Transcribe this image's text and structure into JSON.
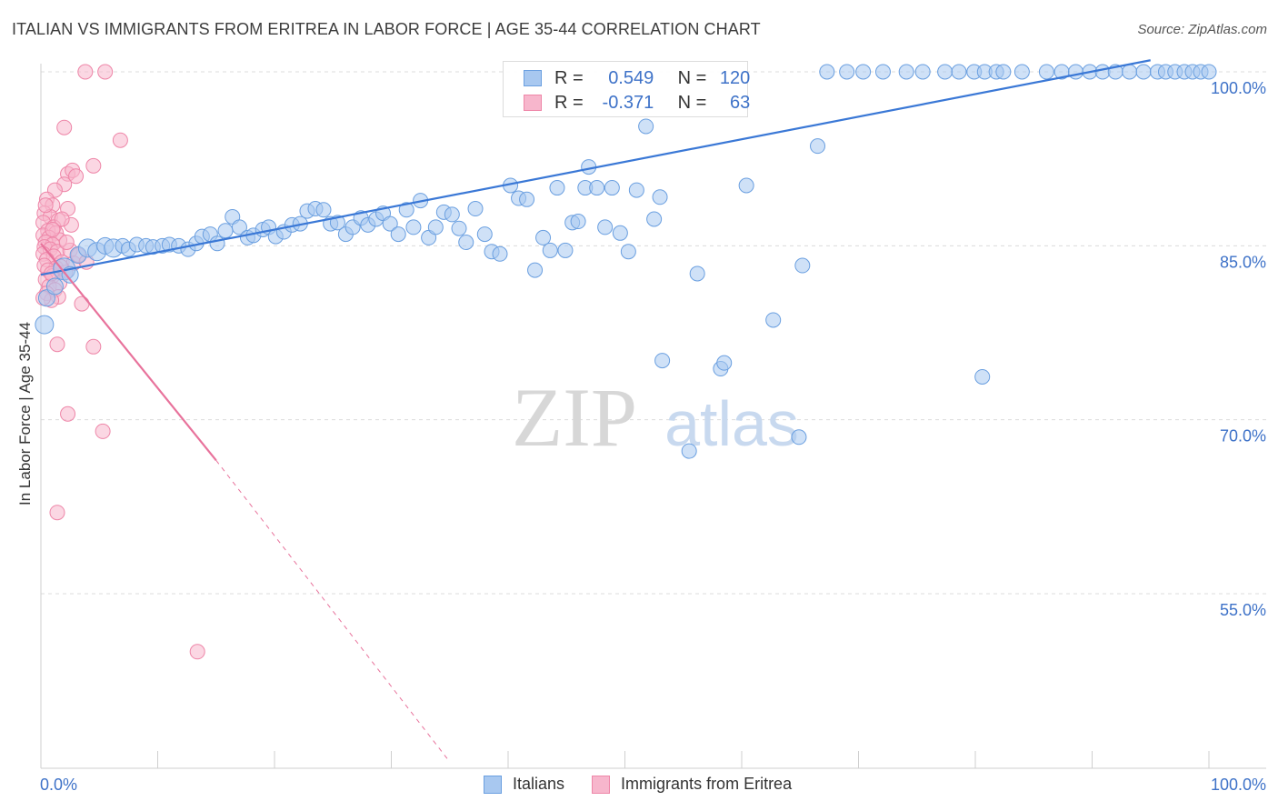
{
  "title": "ITALIAN VS IMMIGRANTS FROM ERITREA IN LABOR FORCE | AGE 35-44 CORRELATION CHART",
  "source": "Source: ZipAtlas.com",
  "watermark": {
    "zip": "ZIP",
    "atlas": "atlas"
  },
  "legend": {
    "italians": {
      "r_label": "R =",
      "r_value": "0.549",
      "n_label": "N =",
      "n_value": "120"
    },
    "eritrea": {
      "r_label": "R =",
      "r_value": "-0.371",
      "n_label": "N =",
      "n_value": "63"
    }
  },
  "bottom_legend": {
    "italians": "Italians",
    "eritrea": "Immigrants from Eritrea"
  },
  "colors": {
    "blue_fill": "#a8c8f0",
    "blue_stroke": "#6a9fe0",
    "blue_line": "#3a78d6",
    "pink_fill": "#f7b6cc",
    "pink_stroke": "#ee86a8",
    "pink_line": "#e8739c",
    "grid": "#dcdcdc",
    "tick_text": "#3e72c8"
  },
  "chart_data": {
    "type": "scatter",
    "title": "ITALIAN VS IMMIGRANTS FROM ERITREA IN LABOR FORCE | AGE 35-44 CORRELATION CHART",
    "xlabel": "",
    "ylabel": "In Labor Force | Age 35-44",
    "xlim": [
      0,
      100
    ],
    "ylim": [
      40,
      102
    ],
    "x_tick_labels": [
      "0.0%",
      "100.0%"
    ],
    "y_ticks": [
      55,
      70,
      85,
      100
    ],
    "y_tick_labels": [
      "55.0%",
      "70.0%",
      "85.0%",
      "100.0%"
    ],
    "series": [
      {
        "name": "Italians",
        "trend": {
          "x0": 0,
          "y0": 82.5,
          "x1": 95,
          "y1": 101,
          "style": "solid"
        },
        "points": [
          [
            0.5,
            80.5,
            9
          ],
          [
            0.3,
            78.2,
            10
          ],
          [
            1.2,
            81.5,
            9
          ],
          [
            2.0,
            83.0,
            12
          ],
          [
            2.5,
            82.5,
            9
          ],
          [
            3.2,
            84.2,
            9
          ],
          [
            4.0,
            84.8,
            10
          ],
          [
            4.8,
            84.5,
            10
          ],
          [
            5.5,
            85.0,
            9
          ],
          [
            6.2,
            84.8,
            10
          ],
          [
            7.0,
            85.0,
            8
          ],
          [
            7.5,
            84.7,
            8
          ],
          [
            8.2,
            85.1,
            8
          ],
          [
            9.0,
            85.0,
            8
          ],
          [
            9.6,
            84.9,
            8
          ],
          [
            10.4,
            85.0,
            8
          ],
          [
            11.0,
            85.1,
            8
          ],
          [
            11.8,
            85.0,
            8
          ],
          [
            12.6,
            84.7,
            8
          ],
          [
            13.3,
            85.2,
            8
          ],
          [
            13.8,
            85.8,
            8
          ],
          [
            14.5,
            86.0,
            8
          ],
          [
            15.1,
            85.2,
            8
          ],
          [
            15.8,
            86.3,
            8
          ],
          [
            16.4,
            87.5,
            8
          ],
          [
            17.0,
            86.6,
            8
          ],
          [
            17.7,
            85.7,
            8
          ],
          [
            18.2,
            85.9,
            8
          ],
          [
            19.0,
            86.4,
            8
          ],
          [
            19.5,
            86.6,
            8
          ],
          [
            20.1,
            85.8,
            8
          ],
          [
            20.8,
            86.2,
            8
          ],
          [
            21.5,
            86.8,
            8
          ],
          [
            22.2,
            86.9,
            8
          ],
          [
            22.8,
            88.0,
            8
          ],
          [
            23.5,
            88.2,
            8
          ],
          [
            24.2,
            88.1,
            8
          ],
          [
            24.8,
            86.9,
            8
          ],
          [
            25.4,
            87.0,
            8
          ],
          [
            26.1,
            86.0,
            8
          ],
          [
            26.7,
            86.6,
            8
          ],
          [
            27.4,
            87.4,
            8
          ],
          [
            28.0,
            86.8,
            8
          ],
          [
            28.7,
            87.3,
            8
          ],
          [
            29.3,
            87.8,
            8
          ],
          [
            29.9,
            86.9,
            8
          ],
          [
            30.6,
            86.0,
            8
          ],
          [
            31.3,
            88.1,
            8
          ],
          [
            31.9,
            86.6,
            8
          ],
          [
            32.5,
            88.9,
            8
          ],
          [
            33.2,
            85.7,
            8
          ],
          [
            33.8,
            86.6,
            8
          ],
          [
            34.5,
            87.9,
            8
          ],
          [
            35.2,
            87.7,
            8
          ],
          [
            35.8,
            86.5,
            8
          ],
          [
            36.4,
            85.3,
            8
          ],
          [
            37.2,
            88.2,
            8
          ],
          [
            38.0,
            86.0,
            8
          ],
          [
            38.6,
            84.5,
            8
          ],
          [
            39.3,
            84.3,
            8
          ],
          [
            40.2,
            90.2,
            8
          ],
          [
            40.9,
            89.1,
            8
          ],
          [
            41.6,
            89.0,
            8
          ],
          [
            42.3,
            82.9,
            8
          ],
          [
            43.0,
            85.7,
            8
          ],
          [
            43.6,
            84.6,
            8
          ],
          [
            44.2,
            90.0,
            8
          ],
          [
            44.9,
            84.6,
            8
          ],
          [
            45.5,
            87.0,
            8
          ],
          [
            46.0,
            87.1,
            8
          ],
          [
            46.6,
            90.0,
            8
          ],
          [
            46.9,
            91.8,
            8
          ],
          [
            47.6,
            90.0,
            8
          ],
          [
            48.3,
            86.6,
            8
          ],
          [
            48.9,
            90.0,
            8
          ],
          [
            49.6,
            86.1,
            8
          ],
          [
            50.3,
            84.5,
            8
          ],
          [
            51.0,
            89.8,
            8
          ],
          [
            51.8,
            95.3,
            8
          ],
          [
            52.5,
            87.3,
            8
          ],
          [
            53.0,
            89.2,
            8
          ],
          [
            53.2,
            75.1,
            8
          ],
          [
            55.5,
            67.3,
            8
          ],
          [
            56.2,
            82.6,
            8
          ],
          [
            58.2,
            74.4,
            8
          ],
          [
            58.5,
            74.9,
            8
          ],
          [
            60.4,
            90.2,
            8
          ],
          [
            62.7,
            78.6,
            8
          ],
          [
            64.9,
            68.5,
            8
          ],
          [
            65.2,
            83.3,
            8
          ],
          [
            66.5,
            93.6,
            8
          ],
          [
            67.3,
            100,
            8
          ],
          [
            69.0,
            100,
            8
          ],
          [
            70.4,
            100,
            8
          ],
          [
            72.1,
            100,
            8
          ],
          [
            74.1,
            100,
            8
          ],
          [
            75.5,
            100,
            8
          ],
          [
            77.4,
            100,
            8
          ],
          [
            78.6,
            100,
            8
          ],
          [
            79.9,
            100,
            8
          ],
          [
            80.8,
            100,
            8
          ],
          [
            81.8,
            100,
            8
          ],
          [
            82.4,
            100,
            8
          ],
          [
            84.0,
            100,
            8
          ],
          [
            86.1,
            100,
            8
          ],
          [
            87.4,
            100,
            8
          ],
          [
            88.6,
            100,
            8
          ],
          [
            89.8,
            100,
            8
          ],
          [
            90.9,
            100,
            8
          ],
          [
            92.0,
            100,
            8
          ],
          [
            93.2,
            100,
            8
          ],
          [
            94.4,
            100,
            8
          ],
          [
            95.6,
            100,
            8
          ],
          [
            96.3,
            100,
            8
          ],
          [
            97.1,
            100,
            8
          ],
          [
            97.9,
            100,
            8
          ],
          [
            98.6,
            100,
            8
          ],
          [
            99.3,
            100,
            8
          ],
          [
            100.0,
            100,
            8
          ],
          [
            80.6,
            73.7,
            8
          ]
        ]
      },
      {
        "name": "Immigrants from Eritrea",
        "trend": {
          "x0": 0,
          "y0": 85.2,
          "x1": 15,
          "y1": 66.5,
          "x2": 35,
          "y2": 40.5,
          "style": "solid-then-dashed"
        },
        "points": [
          [
            3.8,
            100,
            8
          ],
          [
            5.5,
            100,
            8
          ],
          [
            2.0,
            95.2,
            8
          ],
          [
            6.8,
            94.1,
            8
          ],
          [
            4.5,
            91.9,
            8
          ],
          [
            2.3,
            91.2,
            8
          ],
          [
            2.7,
            91.5,
            8
          ],
          [
            3.0,
            91.0,
            8
          ],
          [
            2.0,
            90.3,
            8
          ],
          [
            1.2,
            89.8,
            8
          ],
          [
            0.5,
            89.0,
            8
          ],
          [
            1.0,
            88.5,
            8
          ],
          [
            2.3,
            88.2,
            8
          ],
          [
            0.3,
            87.8,
            8
          ],
          [
            0.8,
            87.5,
            8
          ],
          [
            1.5,
            87.2,
            8
          ],
          [
            0.2,
            87.0,
            8
          ],
          [
            1.1,
            86.6,
            8
          ],
          [
            0.6,
            86.3,
            8
          ],
          [
            1.3,
            86.1,
            8
          ],
          [
            0.2,
            85.9,
            8
          ],
          [
            0.7,
            85.7,
            8
          ],
          [
            1.6,
            85.5,
            8
          ],
          [
            0.4,
            85.3,
            8
          ],
          [
            1.0,
            85.1,
            8
          ],
          [
            0.3,
            84.9,
            8
          ],
          [
            0.8,
            84.7,
            8
          ],
          [
            1.4,
            84.5,
            8
          ],
          [
            0.2,
            84.3,
            8
          ],
          [
            2.5,
            84.6,
            8
          ],
          [
            1.1,
            84.1,
            8
          ],
          [
            0.5,
            83.8,
            8
          ],
          [
            1.8,
            83.6,
            8
          ],
          [
            0.3,
            83.3,
            8
          ],
          [
            2.8,
            83.5,
            8
          ],
          [
            1.3,
            83.1,
            8
          ],
          [
            0.6,
            82.9,
            8
          ],
          [
            2.1,
            82.7,
            8
          ],
          [
            1.0,
            82.4,
            8
          ],
          [
            0.4,
            82.1,
            8
          ],
          [
            1.6,
            81.8,
            8
          ],
          [
            0.7,
            81.5,
            8
          ],
          [
            1.2,
            81.2,
            8
          ],
          [
            0.5,
            80.9,
            8
          ],
          [
            1.5,
            80.6,
            8
          ],
          [
            0.9,
            80.3,
            8
          ],
          [
            3.5,
            80.0,
            8
          ],
          [
            1.4,
            76.5,
            8
          ],
          [
            4.5,
            76.3,
            8
          ],
          [
            2.3,
            70.5,
            8
          ],
          [
            5.3,
            69.0,
            8
          ],
          [
            1.4,
            62.0,
            8
          ],
          [
            13.4,
            50.0,
            8
          ],
          [
            3.2,
            84.2,
            8
          ],
          [
            3.9,
            83.6,
            8
          ],
          [
            0.9,
            82.6,
            8
          ],
          [
            2.6,
            86.8,
            8
          ],
          [
            1.8,
            87.3,
            8
          ],
          [
            0.2,
            80.5,
            8
          ],
          [
            2.2,
            85.3,
            8
          ],
          [
            1.0,
            86.4,
            8
          ],
          [
            0.4,
            88.5,
            8
          ],
          [
            1.7,
            83.2,
            8
          ]
        ]
      }
    ]
  }
}
